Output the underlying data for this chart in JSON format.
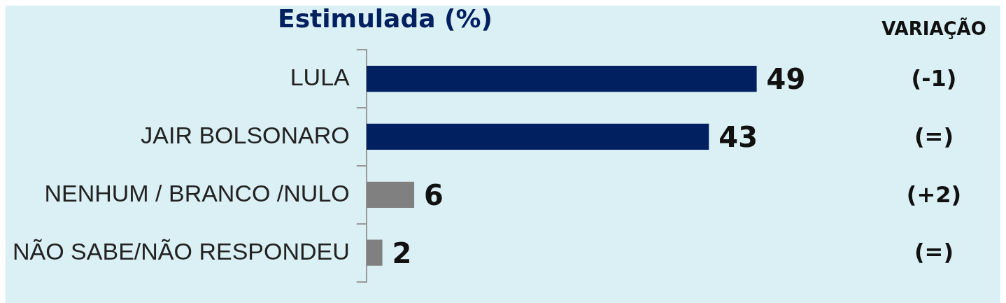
{
  "chart_data": {
    "type": "bar",
    "orientation": "horizontal",
    "title": "Estimulada (%)",
    "categories": [
      "LULA",
      "JAIR BOLSONARO",
      "NENHUM / BRANCO /NULO",
      "NÃO SABE/NÃO RESPONDEU"
    ],
    "values": [
      49,
      43,
      6,
      2
    ],
    "colors": [
      "#002060",
      "#002060",
      "#808080",
      "#808080"
    ],
    "data_labels": true,
    "tick_labels": "y",
    "legend": false,
    "annotations": [
      "VARIAÇÃO",
      "(-1)",
      "(=)",
      "(+2)",
      "(=)"
    ]
  }
}
